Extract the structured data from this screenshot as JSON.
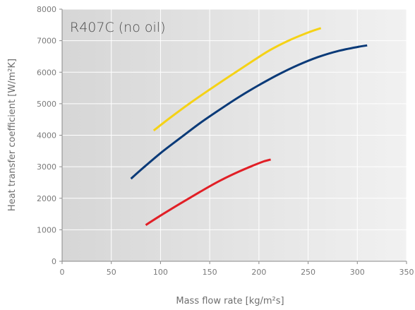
{
  "chart_data": {
    "type": "line",
    "title": "R407C (no oil)",
    "xlabel": "Mass flow rate [kg/m²s]",
    "ylabel": "Heat transfer coefficient [W/m²K]",
    "xlim": [
      0,
      350
    ],
    "ylim": [
      0,
      8000
    ],
    "xticks": [
      0,
      50,
      100,
      150,
      200,
      250,
      300,
      350
    ],
    "yticks": [
      0,
      1000,
      2000,
      3000,
      4000,
      5000,
      6000,
      7000,
      8000
    ],
    "grid": true,
    "legend": "none",
    "series": [
      {
        "color": "#f5d216",
        "x": [
          93,
          110,
          130,
          150,
          170,
          190,
          210,
          230,
          250,
          263
        ],
        "y": [
          4150,
          4560,
          5020,
          5450,
          5870,
          6280,
          6680,
          7000,
          7260,
          7400
        ]
      },
      {
        "color": "#0a3a78",
        "x": [
          70,
          80,
          100,
          120,
          140,
          160,
          180,
          200,
          220,
          240,
          260,
          280,
          300,
          310
        ],
        "y": [
          2620,
          2900,
          3430,
          3910,
          4380,
          4810,
          5220,
          5590,
          5930,
          6230,
          6480,
          6670,
          6800,
          6850
        ]
      },
      {
        "color": "#e11f26",
        "x": [
          85,
          100,
          120,
          140,
          160,
          180,
          195,
          205,
          212
        ],
        "y": [
          1150,
          1450,
          1830,
          2200,
          2550,
          2850,
          3050,
          3170,
          3230
        ]
      }
    ],
    "plot_gradient": [
      "#d6d6d6",
      "#f1f1f1"
    ],
    "grid_color": "#ffffff",
    "axis_color": "#8a8a8a",
    "text_color": "#7a7a7a"
  }
}
